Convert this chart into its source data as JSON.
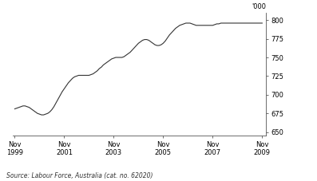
{
  "ylabel": "'000",
  "source": "Source: Labour Force, Australia (cat. no. 62020)",
  "x_tick_labels": [
    "Nov\n1999",
    "Nov\n2001",
    "Nov\n2003",
    "Nov\n2005",
    "Nov\n2007",
    "Nov\n2009"
  ],
  "x_tick_positions": [
    0,
    24,
    48,
    72,
    96,
    120
  ],
  "yticks": [
    650,
    675,
    700,
    725,
    750,
    775,
    800
  ],
  "ylim": [
    645,
    810
  ],
  "xlim": [
    -1,
    122
  ],
  "line_color": "#333333",
  "line_width": 0.8,
  "background_color": "#ffffff",
  "values": [
    681,
    682,
    683,
    684,
    685,
    685,
    684,
    683,
    681,
    679,
    677,
    675,
    674,
    673,
    673,
    674,
    675,
    677,
    680,
    684,
    689,
    694,
    699,
    704,
    708,
    712,
    716,
    719,
    722,
    724,
    725,
    726,
    726,
    726,
    726,
    726,
    726,
    727,
    728,
    730,
    732,
    735,
    737,
    740,
    742,
    744,
    746,
    748,
    749,
    750,
    750,
    750,
    750,
    751,
    753,
    755,
    757,
    760,
    763,
    766,
    769,
    771,
    773,
    774,
    774,
    773,
    771,
    769,
    767,
    766,
    766,
    767,
    769,
    772,
    776,
    780,
    783,
    786,
    789,
    791,
    793,
    794,
    795,
    796,
    796,
    796,
    795,
    794,
    793,
    793,
    793,
    793,
    793,
    793,
    793,
    793,
    793,
    794,
    795,
    795,
    796,
    796,
    796,
    796,
    796,
    796,
    796,
    796,
    796,
    796,
    796,
    796,
    796,
    796,
    796,
    796,
    796,
    796,
    796,
    796,
    796
  ]
}
